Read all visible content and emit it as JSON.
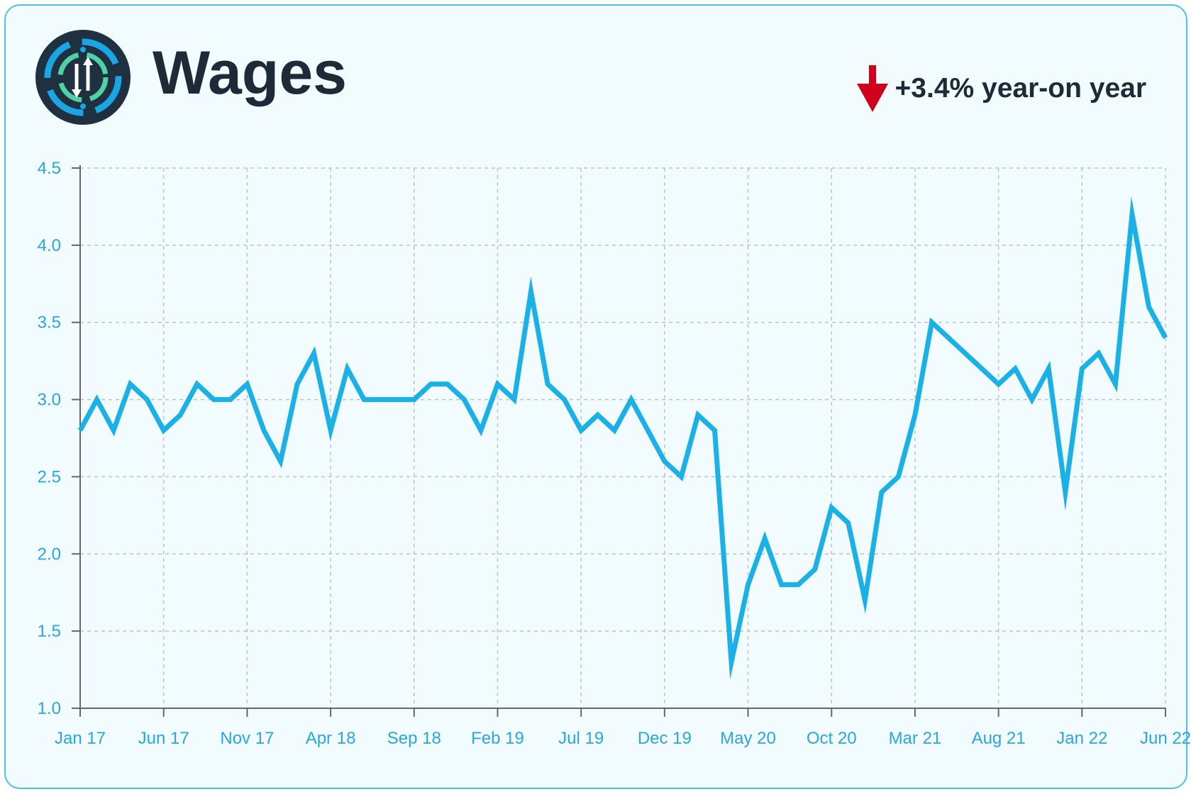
{
  "header": {
    "title": "Wages",
    "change_text": "+3.4% year-on year",
    "change_direction": "down",
    "change_color": "#d0021b",
    "logo_icon": "info-arrows-logo-icon"
  },
  "colors": {
    "line": "#1bb1e7",
    "axis_text": "#29a7df",
    "border": "#4cc3e8",
    "background": "#f2fbfe",
    "title": "#1d2b38"
  },
  "chart_data": {
    "type": "line",
    "title": "",
    "xlabel": "",
    "ylabel": "",
    "ylim": [
      1.0,
      4.5
    ],
    "yticks": [
      "1.0",
      "1.5",
      "2.0",
      "2.5",
      "3.0",
      "3.5",
      "4.0",
      "4.5"
    ],
    "xticks": [
      "Jan 17",
      "Jun 17",
      "Nov 17",
      "Apr 18",
      "Sep 18",
      "Feb 19",
      "Jul 19",
      "Dec 19",
      "May 20",
      "Oct 20",
      "Mar 21",
      "Aug 21",
      "Jan 22",
      "Jun 22"
    ],
    "grid": true,
    "series": [
      {
        "x": [
          "Jan 17",
          "Feb 17",
          "Mar 17",
          "Apr 17",
          "May 17",
          "Jun 17",
          "Jul 17",
          "Aug 17",
          "Sep 17",
          "Oct 17",
          "Nov 17",
          "Dec 17",
          "Jan 18",
          "Feb 18",
          "Mar 18",
          "Apr 18",
          "May 18",
          "Jun 18",
          "Jul 18",
          "Aug 18",
          "Sep 18",
          "Oct 18",
          "Nov 18",
          "Dec 18",
          "Jan 19",
          "Feb 19",
          "Mar 19",
          "Apr 19",
          "May 19",
          "Jun 19",
          "Jul 19",
          "Aug 19",
          "Sep 19",
          "Oct 19",
          "Nov 19",
          "Dec 19",
          "Jan 20",
          "Feb 20",
          "Mar 20",
          "Apr 20",
          "May 20",
          "Jun 20",
          "Jul 20",
          "Aug 20",
          "Sep 20",
          "Oct 20",
          "Nov 20",
          "Dec 20",
          "Jan 21",
          "Feb 21",
          "Mar 21",
          "Apr 21",
          "Aug 21",
          "Sep 21",
          "Oct 21",
          "Nov 21",
          "Dec 21",
          "Jan 22",
          "Feb 22",
          "Mar 22",
          "Apr 22",
          "May 22",
          "Jun 22"
        ],
        "values": [
          2.8,
          3.0,
          2.8,
          3.1,
          3.0,
          2.8,
          2.9,
          3.1,
          3.0,
          3.0,
          3.1,
          2.8,
          2.6,
          3.1,
          3.3,
          2.8,
          3.2,
          3.0,
          3.0,
          3.0,
          3.0,
          3.1,
          3.1,
          3.0,
          2.8,
          3.1,
          3.0,
          3.7,
          3.1,
          3.0,
          2.8,
          2.9,
          2.8,
          3.0,
          2.8,
          2.6,
          2.5,
          2.9,
          2.8,
          1.3,
          1.8,
          2.1,
          1.8,
          1.8,
          1.9,
          2.3,
          2.2,
          1.7,
          2.4,
          2.5,
          2.9,
          3.5,
          3.1,
          3.2,
          3.0,
          3.2,
          2.4,
          3.2,
          3.3,
          3.1,
          4.2,
          3.6,
          3.4
        ]
      }
    ]
  }
}
